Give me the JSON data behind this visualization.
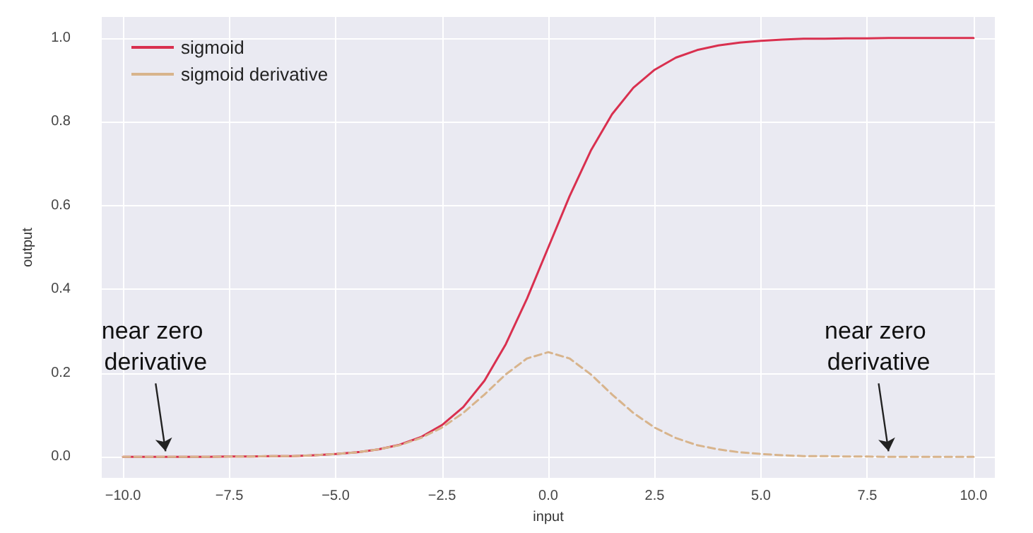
{
  "chart_data": {
    "type": "line",
    "xlabel": "input",
    "ylabel": "output",
    "x": [
      -10,
      -9.5,
      -9,
      -8.5,
      -8,
      -7.5,
      -7,
      -6.5,
      -6,
      -5.5,
      -5,
      -4.5,
      -4,
      -3.5,
      -3,
      -2.5,
      -2,
      -1.5,
      -1,
      -0.5,
      0,
      0.5,
      1,
      1.5,
      2,
      2.5,
      3,
      3.5,
      4,
      4.5,
      5,
      5.5,
      6,
      6.5,
      7,
      7.5,
      8,
      8.5,
      9,
      9.5,
      10
    ],
    "series": [
      {
        "name": "sigmoid",
        "color": "#d9304f",
        "line_style": "solid",
        "values": [
          0,
          0,
          0,
          0,
          0,
          0.001,
          0.001,
          0.002,
          0.002,
          0.004,
          0.007,
          0.011,
          0.018,
          0.029,
          0.047,
          0.076,
          0.119,
          0.182,
          0.269,
          0.378,
          0.5,
          0.622,
          0.731,
          0.818,
          0.881,
          0.924,
          0.953,
          0.971,
          0.982,
          0.989,
          0.993,
          0.996,
          0.998,
          0.998,
          0.999,
          0.999,
          1,
          1,
          1,
          1,
          1
        ]
      },
      {
        "name": "sigmoid derivative",
        "color": "#d8b48c",
        "line_style": "dashed",
        "values": [
          0,
          0,
          0,
          0,
          0,
          0.001,
          0.001,
          0.002,
          0.002,
          0.004,
          0.007,
          0.011,
          0.018,
          0.028,
          0.045,
          0.07,
          0.105,
          0.149,
          0.197,
          0.235,
          0.25,
          0.235,
          0.197,
          0.149,
          0.105,
          0.07,
          0.045,
          0.028,
          0.018,
          0.011,
          0.007,
          0.004,
          0.002,
          0.002,
          0.001,
          0.001,
          0,
          0,
          0,
          0,
          0
        ]
      }
    ],
    "xlim": [
      -10.5,
      10.5
    ],
    "xticks": [
      {
        "value": -10,
        "label": "−10.0"
      },
      {
        "value": -7.5,
        "label": "−7.5"
      },
      {
        "value": -5,
        "label": "−5.0"
      },
      {
        "value": -2.5,
        "label": "−2.5"
      },
      {
        "value": 0,
        "label": "0.0"
      },
      {
        "value": 2.5,
        "label": "2.5"
      },
      {
        "value": 5,
        "label": "5.0"
      },
      {
        "value": 7.5,
        "label": "7.5"
      },
      {
        "value": 10,
        "label": "10.0"
      }
    ],
    "ylim": [
      -0.05,
      1.05
    ],
    "yticks": [
      {
        "value": 0,
        "label": "0.0"
      },
      {
        "value": 0.2,
        "label": "0.2"
      },
      {
        "value": 0.4,
        "label": "0.4"
      },
      {
        "value": 0.6,
        "label": "0.6"
      },
      {
        "value": 0.8,
        "label": "0.8"
      },
      {
        "value": 1,
        "label": "1.0"
      }
    ],
    "annotations": [
      {
        "text": "near zero derivative",
        "x": -9,
        "y": 0
      },
      {
        "text": "near zero derivative",
        "x": 8,
        "y": 0
      }
    ],
    "grid": true,
    "legend": "top left",
    "marker": "none"
  }
}
